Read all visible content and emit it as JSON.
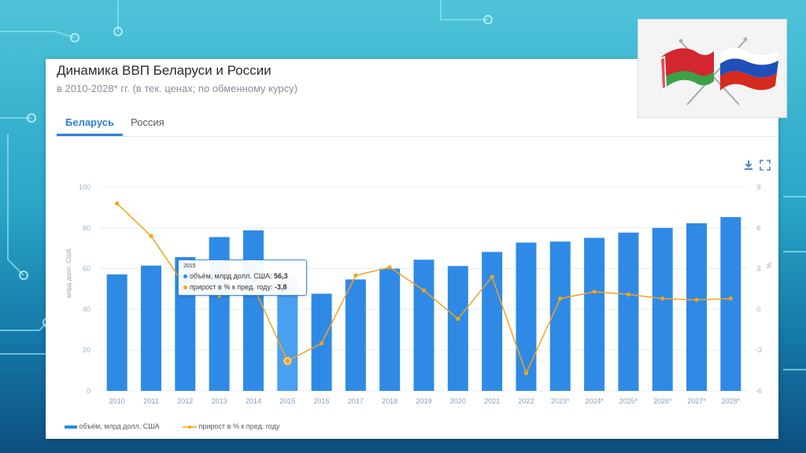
{
  "header": {
    "title": "Динамика ВВП Беларуси и России",
    "subtitle": "в 2010-2028* гг. (в тек. ценах; по обменному курсу)"
  },
  "tabs": [
    {
      "label": "Беларусь",
      "active": true
    },
    {
      "label": "Россия",
      "active": false
    }
  ],
  "toolbar": {
    "download_icon": "download-icon",
    "fullscreen_icon": "fullscreen-icon"
  },
  "flags_image": {
    "icon": "belarus-russia-crossed-flags-icon"
  },
  "colors": {
    "bar": "#2f8ae6",
    "bar_highlight": "#4aa0f0",
    "line": "#f3a41a",
    "accent": "#2f80d8"
  },
  "chart_data": {
    "type": "bar+line",
    "categories": [
      "2010",
      "2011",
      "2012",
      "2013",
      "2014",
      "2015",
      "2016",
      "2017",
      "2018",
      "2019",
      "2020",
      "2021",
      "2022",
      "2023*",
      "2024*",
      "2025*",
      "2026*",
      "2027*",
      "2028*"
    ],
    "series": [
      {
        "name": "объём, млрд долл. США",
        "type": "bar",
        "axis": "left",
        "values": [
          57.2,
          61.5,
          65.7,
          75.5,
          78.8,
          56.3,
          47.7,
          54.7,
          60.0,
          64.4,
          61.3,
          68.2,
          72.8,
          73.3,
          75.1,
          77.7,
          80.0,
          82.3,
          85.3
        ]
      },
      {
        "name": "прирост в % к пред. году",
        "type": "line",
        "axis": "right",
        "values": [
          7.8,
          5.4,
          1.7,
          1.0,
          1.7,
          -3.8,
          -2.5,
          2.5,
          3.1,
          1.4,
          -0.7,
          2.4,
          -4.7,
          0.8,
          1.3,
          1.1,
          0.8,
          0.7,
          0.8
        ]
      }
    ],
    "y_left": {
      "label": "млрд долл. США",
      "range": [
        0,
        100
      ],
      "ticks": [
        "0",
        "20",
        "40",
        "60",
        "80",
        "100"
      ]
    },
    "y_right": {
      "label": "%",
      "range": [
        -6,
        9
      ],
      "ticks": [
        "-6",
        "-3",
        "0",
        "3",
        "6",
        "9"
      ]
    },
    "grid": true,
    "legend_position": "bottom-left",
    "highlight_index": 5
  },
  "tooltip": {
    "year": "2015",
    "row1_label": "объём, млрд долл. США:",
    "row1_value": "56,3",
    "row2_label": "прирост в % к пред. году:",
    "row2_value": "-3,8"
  },
  "legend": {
    "bar_label": "объём, млрд долл. США",
    "line_label": "прирост в % к пред. году"
  }
}
